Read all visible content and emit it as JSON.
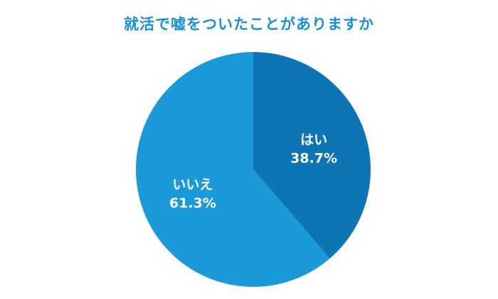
{
  "chart_data": {
    "type": "pie",
    "title": "就活で嘘をついたことがありますか",
    "slices": [
      {
        "label": "はい",
        "value": 38.7,
        "value_label": "38.7%",
        "color": "#0e75b5"
      },
      {
        "label": "いいえ",
        "value": 61.3,
        "value_label": "61.3%",
        "color": "#1a9ad9"
      }
    ],
    "start_angle": "12 o'clock",
    "direction": "clockwise",
    "legend": "none",
    "colors": {
      "title": "#1a8fd8",
      "label_text": "#ffffff",
      "background": "#ffffff"
    }
  }
}
